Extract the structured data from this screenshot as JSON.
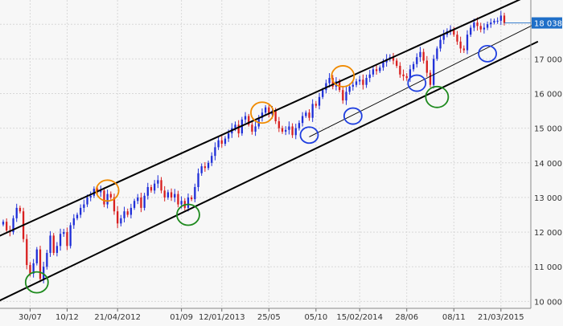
{
  "chart_data": {
    "type": "candlestick",
    "title": "",
    "xlabel": "",
    "ylabel": "",
    "grid": true,
    "legend": "none",
    "ylim": [
      9800,
      18700
    ],
    "y_ticks": [
      10000,
      11000,
      12000,
      13000,
      14000,
      15000,
      16000,
      17000,
      18000
    ],
    "y_tick_labels": [
      "10 000",
      "11 000",
      "12 000",
      "13 000",
      "14 000",
      "15 000",
      "16 000",
      "17 000",
      "18 000"
    ],
    "x_ticks": [
      {
        "label": "30/07",
        "index": 8
      },
      {
        "label": "10/12",
        "index": 19
      },
      {
        "label": "21/04/2012",
        "index": 34
      },
      {
        "label": "01/09",
        "index": 53
      },
      {
        "label": "12/01/2013",
        "index": 65
      },
      {
        "label": "25/05",
        "index": 79
      },
      {
        "label": "05/10",
        "index": 93
      },
      {
        "label": "15/02/2014",
        "index": 106
      },
      {
        "label": "28/06",
        "index": 120
      },
      {
        "label": "08/11",
        "index": 134
      },
      {
        "label": "21/03/2015",
        "index": 148
      }
    ],
    "last_value_label": "18 038",
    "last_value": 18038,
    "close_series": [
      12300,
      12050,
      12000,
      12400,
      12700,
      12600,
      11800,
      11050,
      10800,
      11100,
      11500,
      10650,
      11000,
      11400,
      11900,
      11400,
      11600,
      11950,
      12000,
      11600,
      12200,
      12400,
      12500,
      12700,
      12800,
      13000,
      13050,
      13250,
      13150,
      13200,
      12800,
      13100,
      13000,
      12600,
      12250,
      12400,
      12600,
      12500,
      12700,
      12900,
      13000,
      12700,
      13050,
      13300,
      13200,
      13400,
      13500,
      13200,
      13000,
      13150,
      13000,
      13100,
      12800,
      12900,
      12700,
      13000,
      12950,
      13300,
      13700,
      13900,
      13850,
      14000,
      14200,
      14450,
      14650,
      14550,
      14700,
      14850,
      15000,
      15100,
      14850,
      15250,
      15350,
      15100,
      14900,
      15050,
      15300,
      15450,
      15600,
      15400,
      15500,
      15200,
      15000,
      14900,
      14950,
      15050,
      14800,
      15000,
      15150,
      15350,
      15450,
      15300,
      15700,
      15650,
      15900,
      16100,
      16300,
      16450,
      16200,
      16350,
      16100,
      15800,
      16050,
      16200,
      16250,
      16350,
      16400,
      16250,
      16450,
      16550,
      16700,
      16650,
      16750,
      16900,
      17000,
      17050,
      16950,
      16800,
      16550,
      16500,
      16450,
      16700,
      16850,
      17050,
      17200,
      16950,
      16600,
      16250,
      17000,
      17300,
      17550,
      17700,
      17800,
      17850,
      17700,
      17500,
      17300,
      17250,
      17700,
      17900,
      18050,
      17950,
      17850,
      17900,
      18000,
      18050,
      18100,
      18100,
      18250,
      18038
    ],
    "channel_lines": [
      {
        "name": "upper-channel",
        "points": [
          [
            -2,
            11850
          ],
          [
            159,
            18950
          ]
        ],
        "style": "thick"
      },
      {
        "name": "lower-channel",
        "points": [
          [
            -2,
            9980
          ],
          [
            159,
            17500
          ]
        ],
        "style": "thick"
      },
      {
        "name": "mid-line",
        "points": [
          [
            91,
            14750
          ],
          [
            159,
            18050
          ]
        ],
        "style": "thin"
      }
    ],
    "circle_annotations": [
      {
        "color": "green",
        "index": 10,
        "value": 10550
      },
      {
        "color": "green",
        "index": 55,
        "value": 12500
      },
      {
        "color": "green",
        "index": 129,
        "value": 15900
      },
      {
        "color": "orange",
        "index": 31,
        "value": 13200
      },
      {
        "color": "orange",
        "index": 77,
        "value": 15450
      },
      {
        "color": "orange",
        "index": 101,
        "value": 16500
      },
      {
        "color": "blue",
        "index": 91,
        "value": 14800
      },
      {
        "color": "blue",
        "index": 104,
        "value": 15350
      },
      {
        "color": "blue",
        "index": 123,
        "value": 16300
      },
      {
        "color": "blue",
        "index": 144,
        "value": 17150
      }
    ],
    "colors": {
      "up": "#1f2fd8",
      "down": "#d81f1f",
      "green_circle": "#1e8a1e",
      "orange_circle": "#f08a00",
      "blue_circle": "#1f3fe0",
      "line": "#000000",
      "grid": "#d8d8d8",
      "last_label_bg": "#1f6fc8"
    }
  }
}
